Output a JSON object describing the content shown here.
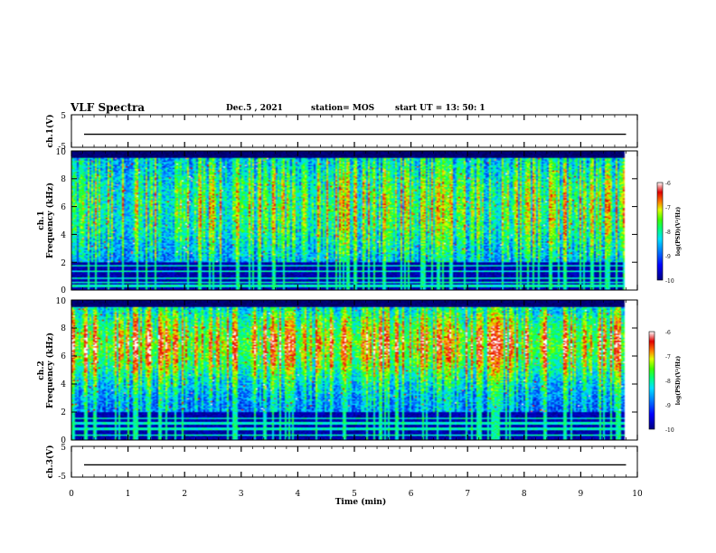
{
  "header": {
    "title": "VLF Spectra",
    "date": "Dec.5 , 2021",
    "station": "station= MOS",
    "start_ut": "start UT = 13: 50: 1"
  },
  "chart_data": [
    {
      "type": "line",
      "panel": "ch1-waveform",
      "ylabel": "ch.1(V)",
      "ylim": [
        -5,
        5
      ],
      "yticks": [
        "5",
        "-5"
      ],
      "xlim": [
        0,
        10
      ],
      "trace_level": -1
    },
    {
      "type": "heatmap",
      "panel": "ch1-spectrogram",
      "ylabel": [
        "ch.1",
        "Frequency (kHz)"
      ],
      "ylim": [
        0,
        10
      ],
      "yticks": [
        "0",
        "2",
        "4",
        "6",
        "8",
        "10"
      ],
      "xlim": [
        0,
        10
      ],
      "colorbar": {
        "label": "log(PSD)(V²/Hz)",
        "ticks": [
          "-6",
          "-7",
          "-8",
          "-9",
          "-10"
        ],
        "range": [
          -10,
          -6
        ]
      },
      "data_end_min": 9.8,
      "hiss_band_khz": [
        2.0,
        9.5
      ],
      "lines_khz": [
        0.3,
        0.55,
        0.85,
        1.35,
        1.75,
        2.05
      ]
    },
    {
      "type": "heatmap",
      "panel": "ch2-spectrogram",
      "ylabel": [
        "ch.2",
        "Frequency (kHz)"
      ],
      "ylim": [
        0,
        10
      ],
      "yticks": [
        "0",
        "2",
        "4",
        "6",
        "8",
        "10"
      ],
      "xlim": [
        0,
        10
      ],
      "colorbar": {
        "label": "log(PSD)(V²/Hz)",
        "ticks": [
          "-6",
          "-7",
          "-8",
          "-9",
          "-10"
        ],
        "range": [
          -10,
          -6
        ]
      },
      "data_end_min": 9.8,
      "hiss_band_khz": [
        2.0,
        9.5
      ],
      "lines_khz": [
        0.35,
        0.8,
        1.2,
        1.55,
        2.05
      ]
    },
    {
      "type": "line",
      "panel": "ch3-waveform",
      "ylabel": "ch.3(V)",
      "ylim": [
        -5,
        5
      ],
      "yticks": [
        "5",
        "-5"
      ],
      "xlim": [
        0,
        10
      ],
      "trace_level": -1
    }
  ],
  "xaxis": {
    "label": "Time (min)",
    "ticks": [
      "0",
      "1",
      "2",
      "3",
      "4",
      "5",
      "6",
      "7",
      "8",
      "9",
      "10"
    ]
  },
  "colors": {
    "colormap": [
      "#000000",
      "#000050",
      "#0000c8",
      "#0050ff",
      "#00c8ff",
      "#00ffa0",
      "#30ff00",
      "#c8ff00",
      "#ffdc00",
      "#ff8000",
      "#e00000",
      "#ffffff"
    ]
  }
}
